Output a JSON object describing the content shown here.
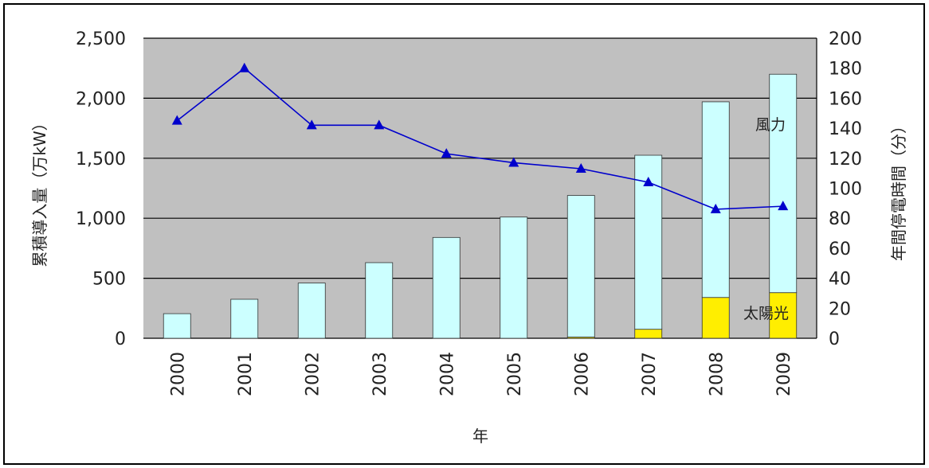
{
  "chart_data": {
    "type": "bar",
    "categories": [
      "2000",
      "2001",
      "2002",
      "2003",
      "2004",
      "2005",
      "2006",
      "2007",
      "2008",
      "2009"
    ],
    "xlabel": "年",
    "ylabel_left": "累積導入量（万kW）",
    "ylabel_right": "年間停電時間（分）",
    "ylim_left": [
      0,
      2500
    ],
    "ylim_right": [
      0,
      200
    ],
    "yticks_left": [
      "0",
      "500",
      "1,000",
      "1,500",
      "2,000",
      "2,500"
    ],
    "yticks_right": [
      "0",
      "20",
      "40",
      "60",
      "80",
      "100",
      "120",
      "140",
      "160",
      "180",
      "200"
    ],
    "grid": true,
    "series": [
      {
        "name": "太陽光",
        "kind": "stacked-bar",
        "axis": "left",
        "color": "#ffee00",
        "values": [
          0,
          0,
          0,
          0,
          0,
          0,
          10,
          75,
          340,
          380
        ]
      },
      {
        "name": "風力",
        "kind": "stacked-bar",
        "axis": "left",
        "color": "#ccffff",
        "values": [
          205,
          325,
          460,
          630,
          840,
          1010,
          1180,
          1450,
          1630,
          1820
        ]
      },
      {
        "kind": "line",
        "axis": "right",
        "color": "#0000cc",
        "marker": "triangle",
        "values": [
          145,
          180,
          142,
          142,
          123,
          117,
          113,
          104,
          86,
          88
        ]
      }
    ],
    "annotations": {
      "wind": "風力",
      "solar": "太陽光"
    },
    "colors": {
      "plot_bg": "#c0c0c0",
      "grid": "#000000",
      "line": "#0000cc"
    }
  }
}
